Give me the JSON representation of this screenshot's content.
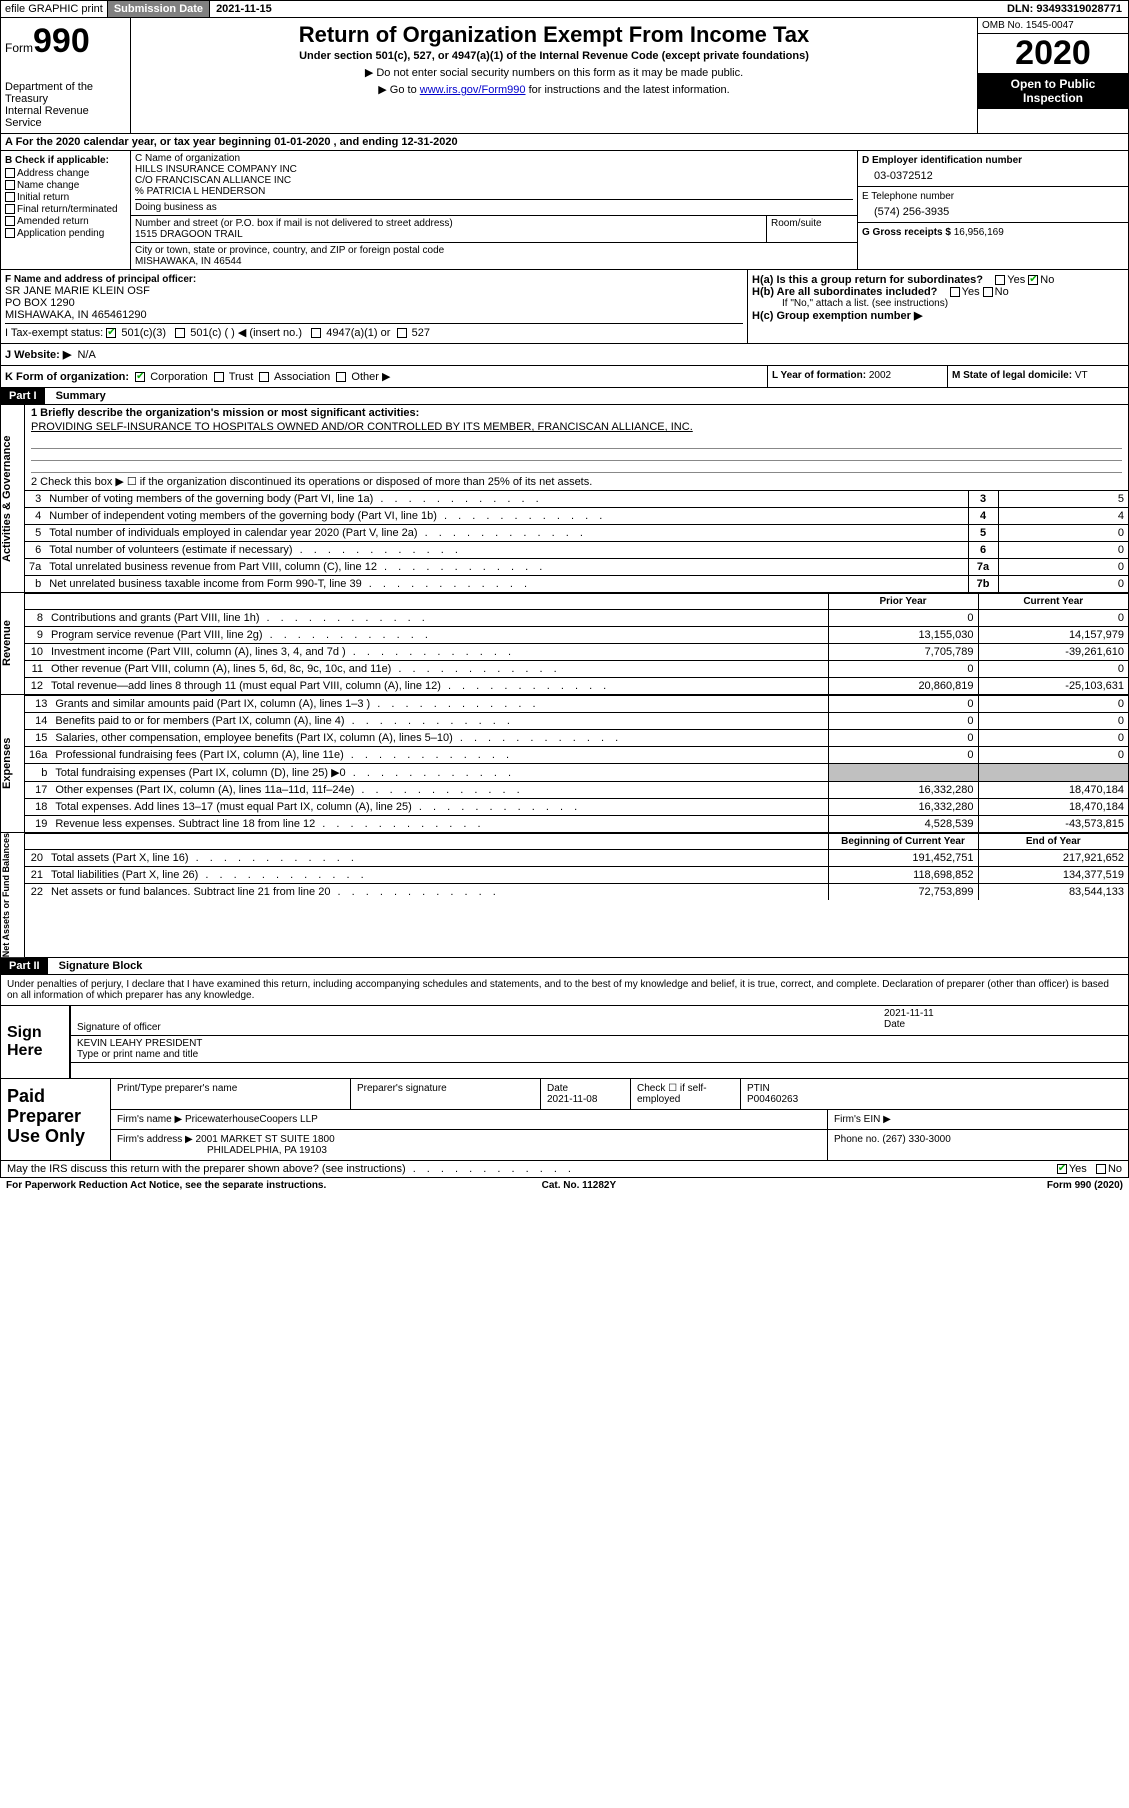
{
  "topbar": {
    "efile": "efile GRAPHIC print",
    "subdate_label": "Submission Date",
    "subdate_val": "2021-11-15",
    "dln_label": "DLN:",
    "dln": "93493319028771"
  },
  "header": {
    "form_label": "Form",
    "form_num": "990",
    "dept": "Department of the Treasury\nInternal Revenue Service",
    "title": "Return of Organization Exempt From Income Tax",
    "sub": "Under section 501(c), 527, or 4947(a)(1) of the Internal Revenue Code (except private foundations)",
    "note1": "▶ Do not enter social security numbers on this form as it may be made public.",
    "note2_pre": "▶ Go to ",
    "note2_link": "www.irs.gov/Form990",
    "note2_post": " for instructions and the latest information.",
    "omb": "OMB No. 1545-0047",
    "year": "2020",
    "public": "Open to Public Inspection"
  },
  "rowA": "A For the 2020 calendar year, or tax year beginning 01-01-2020    , and ending 12-31-2020",
  "colB": {
    "hdr": "B Check if applicable:",
    "items": [
      "Address change",
      "Name change",
      "Initial return",
      "Final return/terminated",
      "Amended return",
      "Application pending"
    ]
  },
  "colC": {
    "name_label": "C Name of organization",
    "name1": "HILLS INSURANCE COMPANY INC",
    "name2": "C/O FRANCISCAN ALLIANCE INC",
    "name3": "% PATRICIA L HENDERSON",
    "dba": "Doing business as",
    "addr_label": "Number and street (or P.O. box if mail is not delivered to street address)",
    "addr": "1515 DRAGOON TRAIL",
    "room_label": "Room/suite",
    "city_label": "City or town, state or province, country, and ZIP or foreign postal code",
    "city": "MISHAWAKA, IN  46544"
  },
  "colD": {
    "ein_label": "D Employer identification number",
    "ein": "03-0372512",
    "tel_label": "E Telephone number",
    "tel": "(574) 256-3935",
    "gross_label": "G Gross receipts $",
    "gross": "16,956,169"
  },
  "colF": {
    "label": "F Name and address of principal officer:",
    "l1": "SR JANE MARIE KLEIN OSF",
    "l2": "PO BOX 1290",
    "l3": "MISHAWAKA, IN  465461290"
  },
  "colH": {
    "a": "H(a)  Is this a group return for subordinates?",
    "b": "H(b)  Are all subordinates included?",
    "b_note": "If \"No,\" attach a list. (see instructions)",
    "c": "H(c)  Group exemption number ▶",
    "yes": "Yes",
    "no": "No"
  },
  "rowI": {
    "label": "I    Tax-exempt status:",
    "c3": "501(c)(3)",
    "c": "501(c) (  ) ◀ (insert no.)",
    "a1": "4947(a)(1) or",
    "s527": "527"
  },
  "rowJ": {
    "label": "J    Website: ▶",
    "val": "N/A"
  },
  "rowK": {
    "label": "K Form of organization:",
    "corp": "Corporation",
    "trust": "Trust",
    "assoc": "Association",
    "other": "Other ▶"
  },
  "rowL": {
    "label": "L Year of formation:",
    "val": "2002"
  },
  "rowM": {
    "label": "M State of legal domicile:",
    "val": "VT"
  },
  "partI": {
    "hdr": "Part I",
    "title": "Summary"
  },
  "gov": {
    "tab": "Activities & Governance",
    "l1": "1  Briefly describe the organization's mission or most significant activities:",
    "mission": "PROVIDING SELF-INSURANCE TO HOSPITALS OWNED AND/OR CONTROLLED BY ITS MEMBER, FRANCISCAN ALLIANCE, INC.",
    "l2": "2   Check this box ▶ ☐  if the organization discontinued its operations or disposed of more than 25% of its net assets.",
    "rows": [
      {
        "n": "3",
        "d": "Number of voting members of the governing body (Part VI, line 1a)",
        "c": "3",
        "v": "5"
      },
      {
        "n": "4",
        "d": "Number of independent voting members of the governing body (Part VI, line 1b)",
        "c": "4",
        "v": "4"
      },
      {
        "n": "5",
        "d": "Total number of individuals employed in calendar year 2020 (Part V, line 2a)",
        "c": "5",
        "v": "0"
      },
      {
        "n": "6",
        "d": "Total number of volunteers (estimate if necessary)",
        "c": "6",
        "v": "0"
      },
      {
        "n": "7a",
        "d": "Total unrelated business revenue from Part VIII, column (C), line 12",
        "c": "7a",
        "v": "0"
      },
      {
        "n": "b",
        "d": "Net unrelated business taxable income from Form 990-T, line 39",
        "c": "7b",
        "v": "0"
      }
    ]
  },
  "rev": {
    "tab": "Revenue",
    "py_hdr": "Prior Year",
    "cy_hdr": "Current Year",
    "rows": [
      {
        "n": "8",
        "d": "Contributions and grants (Part VIII, line 1h)",
        "py": "0",
        "cy": "0"
      },
      {
        "n": "9",
        "d": "Program service revenue (Part VIII, line 2g)",
        "py": "13,155,030",
        "cy": "14,157,979"
      },
      {
        "n": "10",
        "d": "Investment income (Part VIII, column (A), lines 3, 4, and 7d )",
        "py": "7,705,789",
        "cy": "-39,261,610"
      },
      {
        "n": "11",
        "d": "Other revenue (Part VIII, column (A), lines 5, 6d, 8c, 9c, 10c, and 11e)",
        "py": "0",
        "cy": "0"
      },
      {
        "n": "12",
        "d": "Total revenue—add lines 8 through 11 (must equal Part VIII, column (A), line 12)",
        "py": "20,860,819",
        "cy": "-25,103,631"
      }
    ]
  },
  "exp": {
    "tab": "Expenses",
    "rows": [
      {
        "n": "13",
        "d": "Grants and similar amounts paid (Part IX, column (A), lines 1–3 )",
        "py": "0",
        "cy": "0"
      },
      {
        "n": "14",
        "d": "Benefits paid to or for members (Part IX, column (A), line 4)",
        "py": "0",
        "cy": "0"
      },
      {
        "n": "15",
        "d": "Salaries, other compensation, employee benefits (Part IX, column (A), lines 5–10)",
        "py": "0",
        "cy": "0"
      },
      {
        "n": "16a",
        "d": "Professional fundraising fees (Part IX, column (A), line 11e)",
        "py": "0",
        "cy": "0"
      },
      {
        "n": "b",
        "d": "Total fundraising expenses (Part IX, column (D), line 25) ▶0",
        "py": "",
        "cy": "",
        "shaded": true
      },
      {
        "n": "17",
        "d": "Other expenses (Part IX, column (A), lines 11a–11d, 11f–24e)",
        "py": "16,332,280",
        "cy": "18,470,184"
      },
      {
        "n": "18",
        "d": "Total expenses. Add lines 13–17 (must equal Part IX, column (A), line 25)",
        "py": "16,332,280",
        "cy": "18,470,184"
      },
      {
        "n": "19",
        "d": "Revenue less expenses. Subtract line 18 from line 12",
        "py": "4,528,539",
        "cy": "-43,573,815"
      }
    ]
  },
  "net": {
    "tab": "Net Assets or Fund Balances",
    "py_hdr": "Beginning of Current Year",
    "cy_hdr": "End of Year",
    "rows": [
      {
        "n": "20",
        "d": "Total assets (Part X, line 16)",
        "py": "191,452,751",
        "cy": "217,921,652"
      },
      {
        "n": "21",
        "d": "Total liabilities (Part X, line 26)",
        "py": "118,698,852",
        "cy": "134,377,519"
      },
      {
        "n": "22",
        "d": "Net assets or fund balances. Subtract line 21 from line 20",
        "py": "72,753,899",
        "cy": "83,544,133"
      }
    ]
  },
  "partII": {
    "hdr": "Part II",
    "title": "Signature Block"
  },
  "perjury": "Under penalties of perjury, I declare that I have examined this return, including accompanying schedules and statements, and to the best of my knowledge and belief, it is true, correct, and complete. Declaration of preparer (other than officer) is based on all information of which preparer has any knowledge.",
  "sign": {
    "here": "Sign Here",
    "sig_label": "Signature of officer",
    "date_label": "Date",
    "date": "2021-11-11",
    "name": "KEVIN LEAHY PRESIDENT",
    "name_label": "Type or print name and title"
  },
  "prep": {
    "label": "Paid Preparer Use Only",
    "r1": {
      "c1": "Print/Type preparer's name",
      "c2": "Preparer's signature",
      "c3": "Date",
      "c3v": "2021-11-08",
      "c4": "Check ☐ if self-employed",
      "c5": "PTIN",
      "c5v": "P00460263"
    },
    "r2": {
      "c1": "Firm's name      ▶",
      "c1v": "PricewaterhouseCoopers LLP",
      "c2": "Firm's EIN ▶"
    },
    "r3": {
      "c1": "Firm's address ▶",
      "c1v": "2001 MARKET ST SUITE 1800",
      "c2": "Phone no.",
      "c2v": "(267) 330-3000"
    },
    "r3b": "PHILADELPHIA, PA  19103"
  },
  "discuss": {
    "q": "May the IRS discuss this return with the preparer shown above? (see instructions)",
    "yes": "Yes",
    "no": "No"
  },
  "footer": {
    "l": "For Paperwork Reduction Act Notice, see the separate instructions.",
    "m": "Cat. No. 11282Y",
    "r": "Form 990 (2020)"
  }
}
